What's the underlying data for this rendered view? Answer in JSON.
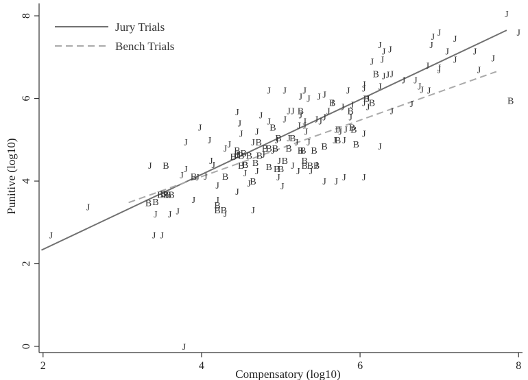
{
  "chart_data": {
    "type": "scatter",
    "xlabel": "Compensatory (log10)",
    "ylabel": "Punitive (log10)",
    "xlim": [
      1.95,
      8.05
    ],
    "ylim": [
      -0.15,
      8.3
    ],
    "xticks": [
      2,
      4,
      6,
      8
    ],
    "yticks": [
      0,
      2,
      4,
      6,
      8
    ],
    "grid": false,
    "legend_position": "top-left",
    "series": [
      {
        "name": "Jury Trials",
        "line_type": "solid",
        "color": "#707070",
        "fit_line": {
          "x": [
            1.98,
            7.85
          ],
          "y": [
            2.33,
            7.65
          ]
        },
        "marker": "J",
        "points": [
          [
            2.1,
            2.7
          ],
          [
            2.57,
            3.38
          ],
          [
            3.4,
            2.7
          ],
          [
            3.5,
            2.7
          ],
          [
            3.42,
            3.2
          ],
          [
            3.6,
            3.2
          ],
          [
            3.7,
            3.28
          ],
          [
            3.78,
            0
          ],
          [
            3.35,
            4.38
          ],
          [
            3.9,
            3.55
          ],
          [
            4.2,
            3.55
          ],
          [
            4.3,
            3.22
          ],
          [
            4.45,
            3.75
          ],
          [
            4.65,
            3.3
          ],
          [
            4.6,
            3.95
          ],
          [
            3.8,
            4.3
          ],
          [
            3.75,
            4.15
          ],
          [
            3.95,
            4.1
          ],
          [
            4.05,
            4.12
          ],
          [
            4.12,
            4.5
          ],
          [
            4.15,
            4.4
          ],
          [
            4.2,
            3.9
          ],
          [
            3.8,
            4.95
          ],
          [
            3.98,
            5.3
          ],
          [
            4.1,
            5
          ],
          [
            4.3,
            4.8
          ],
          [
            4.35,
            4.9
          ],
          [
            4.45,
            4.65
          ],
          [
            4.55,
            4.2
          ],
          [
            4.5,
            5.15
          ],
          [
            4.48,
            5.4
          ],
          [
            4.45,
            5.68
          ],
          [
            4.7,
            5.2
          ],
          [
            4.75,
            5.6
          ],
          [
            4.85,
            5.45
          ],
          [
            4.85,
            6.2
          ],
          [
            4.65,
            4.95
          ],
          [
            4.7,
            4.25
          ],
          [
            4.78,
            4.65
          ],
          [
            4.9,
            4.75
          ],
          [
            4.95,
            5
          ],
          [
            4.98,
            4.5
          ],
          [
            4.97,
            4.1
          ],
          [
            5.02,
            3.88
          ],
          [
            5.05,
            5.5
          ],
          [
            5.05,
            6.2
          ],
          [
            5.1,
            5.7
          ],
          [
            5.1,
            5.05
          ],
          [
            5.15,
            4.38
          ],
          [
            5.2,
            4.95
          ],
          [
            5.22,
            4.25
          ],
          [
            5.25,
            5.6
          ],
          [
            5.25,
            6.05
          ],
          [
            5.3,
            6.2
          ],
          [
            5.3,
            5.45
          ],
          [
            5.32,
            5.2
          ],
          [
            5.35,
            4.95
          ],
          [
            5.38,
            4.25
          ],
          [
            5.45,
            4.4
          ],
          [
            5.48,
            6.05
          ],
          [
            5.5,
            5.45
          ],
          [
            5.55,
            5.55
          ],
          [
            5.55,
            6.1
          ],
          [
            5.6,
            5.7
          ],
          [
            5.65,
            5.9
          ],
          [
            5.68,
            5
          ],
          [
            5.7,
            4
          ],
          [
            5.7,
            5.25
          ],
          [
            5.73,
            5.25
          ],
          [
            5.78,
            5.8
          ],
          [
            5.8,
            4.1
          ],
          [
            5.82,
            5.25
          ],
          [
            5.85,
            6.2
          ],
          [
            5.88,
            5.55
          ],
          [
            6.05,
            4.1
          ],
          [
            6.05,
            5.15
          ],
          [
            6.05,
            5.9
          ],
          [
            6.05,
            6.25
          ],
          [
            6.05,
            6.35
          ],
          [
            6.1,
            6.0
          ],
          [
            6.1,
            5.8
          ],
          [
            6.15,
            6.9
          ],
          [
            6.25,
            4.85
          ],
          [
            6.25,
            6.3
          ],
          [
            6.25,
            7.3
          ],
          [
            6.28,
            6.95
          ],
          [
            6.3,
            7.15
          ],
          [
            6.3,
            6.55
          ],
          [
            6.35,
            6.58
          ],
          [
            6.38,
            7.2
          ],
          [
            6.4,
            6.6
          ],
          [
            6.4,
            5.7
          ],
          [
            6.55,
            6.45
          ],
          [
            6.65,
            5.88
          ],
          [
            6.7,
            6.45
          ],
          [
            6.75,
            6.3
          ],
          [
            6.78,
            6.22
          ],
          [
            6.85,
            6.8
          ],
          [
            6.87,
            6.2
          ],
          [
            6.9,
            7.3
          ],
          [
            6.92,
            7.5
          ],
          [
            7.0,
            7.6
          ],
          [
            7.0,
            6.7
          ],
          [
            7.0,
            6.75
          ],
          [
            7.1,
            7.15
          ],
          [
            7.2,
            7.45
          ],
          [
            7.2,
            6.95
          ],
          [
            7.45,
            7.15
          ],
          [
            7.5,
            6.7
          ],
          [
            7.68,
            6.98
          ],
          [
            7.85,
            8.05
          ],
          [
            8.0,
            7.6
          ],
          [
            5.15,
            5.7
          ],
          [
            5.23,
            5.35
          ],
          [
            5.3,
            5.35
          ],
          [
            5.35,
            6.0
          ],
          [
            5.45,
            5.5
          ],
          [
            5.75,
            5.2
          ],
          [
            5.8,
            5.0
          ],
          [
            5.9,
            5.85
          ],
          [
            5.55,
            4.0
          ]
        ]
      },
      {
        "name": "Bench Trials",
        "line_type": "dashed",
        "color": "#aaaaaa",
        "fit_line": {
          "x": [
            3.08,
            7.72
          ],
          "y": [
            3.48,
            6.65
          ]
        },
        "marker": "B",
        "points": [
          [
            3.33,
            3.48
          ],
          [
            3.55,
            3.68
          ],
          [
            3.58,
            3.68
          ],
          [
            3.48,
            3.68
          ],
          [
            3.42,
            3.5
          ],
          [
            3.62,
            3.68
          ],
          [
            3.52,
            3.7
          ],
          [
            3.55,
            4.38
          ],
          [
            3.9,
            4.12
          ],
          [
            4.3,
            4.12
          ],
          [
            4.4,
            4.6
          ],
          [
            4.45,
            4.75
          ],
          [
            4.5,
            4.38
          ],
          [
            4.55,
            4.4
          ],
          [
            4.53,
            4.68
          ],
          [
            4.6,
            4.62
          ],
          [
            4.68,
            4.45
          ],
          [
            4.73,
            4.62
          ],
          [
            4.72,
            4.95
          ],
          [
            4.8,
            4.8
          ],
          [
            4.85,
            4.8
          ],
          [
            4.9,
            5.3
          ],
          [
            4.93,
            4.8
          ],
          [
            4.97,
            5.05
          ],
          [
            5.0,
            4.3
          ],
          [
            5.05,
            4.5
          ],
          [
            5.1,
            4.8
          ],
          [
            5.15,
            5.05
          ],
          [
            5.25,
            5.7
          ],
          [
            5.3,
            4.5
          ],
          [
            5.25,
            4.75
          ],
          [
            5.3,
            4.38
          ],
          [
            5.37,
            4.38
          ],
          [
            5.42,
            4.75
          ],
          [
            5.45,
            4.38
          ],
          [
            5.55,
            4.85
          ],
          [
            5.65,
            5.9
          ],
          [
            5.72,
            5.0
          ],
          [
            5.88,
            5.7
          ],
          [
            5.9,
            5.3
          ],
          [
            5.92,
            5.25
          ],
          [
            5.95,
            4.9
          ],
          [
            6.08,
            6.0
          ],
          [
            6.15,
            5.9
          ],
          [
            6.2,
            6.6
          ],
          [
            7.9,
            5.95
          ],
          [
            4.2,
            3.3
          ],
          [
            4.28,
            3.3
          ],
          [
            4.2,
            3.42
          ],
          [
            4.55,
            4.4
          ],
          [
            4.5,
            4.62
          ],
          [
            4.65,
            4.0
          ],
          [
            4.85,
            4.35
          ],
          [
            4.95,
            4.3
          ],
          [
            5.28,
            4.75
          ],
          [
            4.45,
            4.65
          ]
        ]
      }
    ]
  }
}
